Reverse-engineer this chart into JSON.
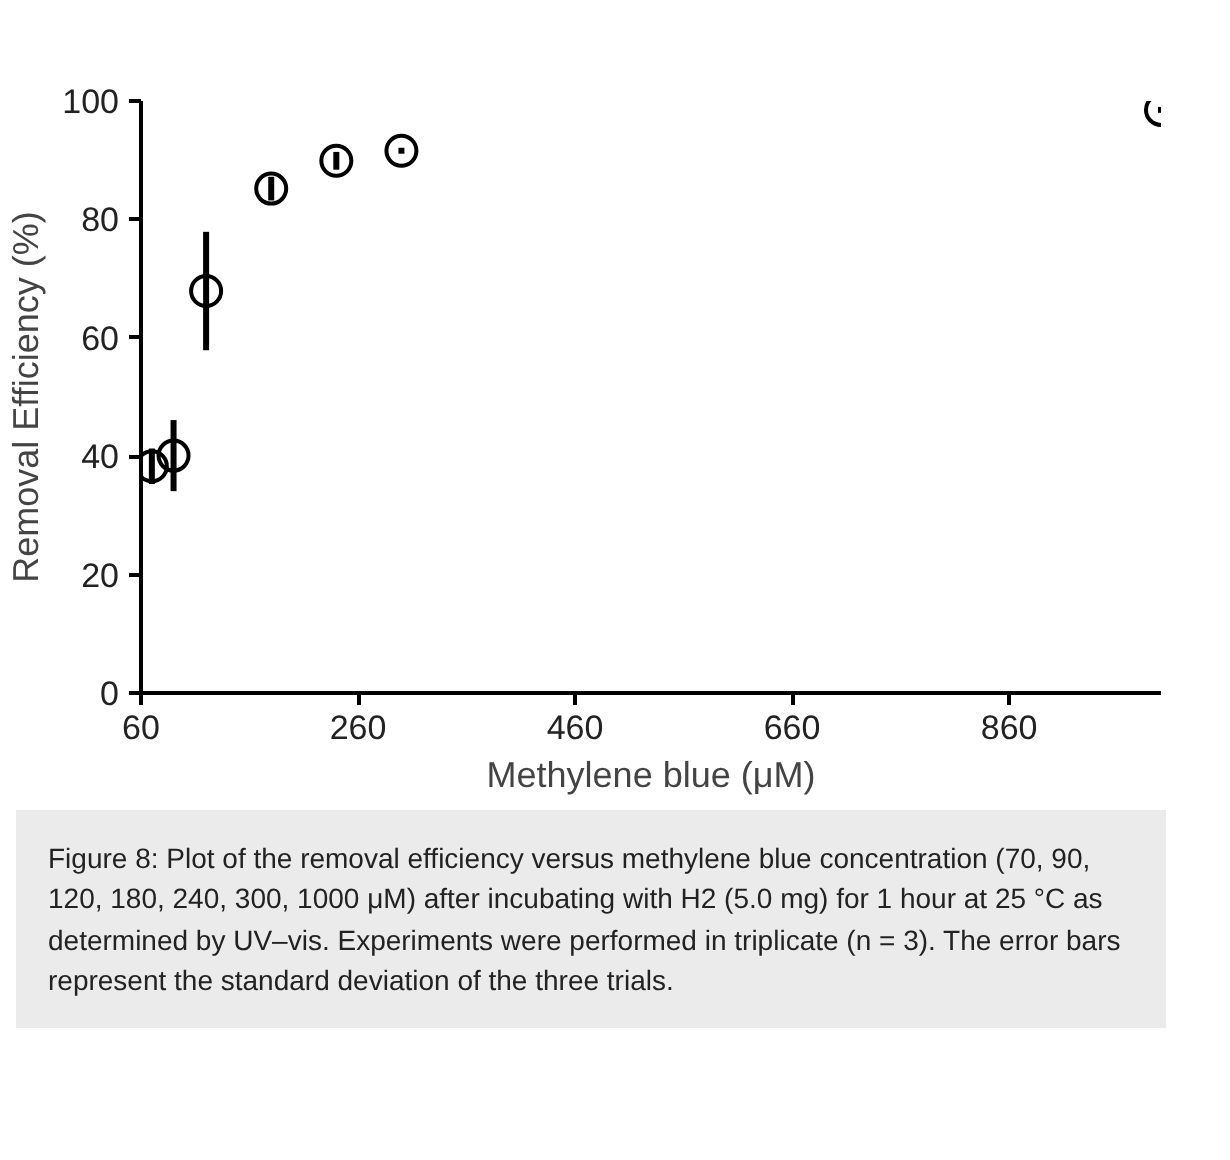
{
  "chart_data": {
    "type": "scatter",
    "xlabel": "Methylene blue (μM)",
    "ylabel": "Removal Efficiency (%)",
    "x": [
      70,
      90,
      120,
      180,
      240,
      300,
      1000
    ],
    "values": [
      38.3,
      40.1,
      67.9,
      85.2,
      89.9,
      91.6,
      98.5
    ],
    "errors": [
      3,
      6,
      10,
      2,
      1.5,
      0.5,
      0.5
    ],
    "color": "#000000",
    "marker": "circle",
    "grid": false,
    "xlim": [
      60,
      1000
    ],
    "xticks": [
      60,
      260,
      460,
      660,
      860
    ],
    "ylim": [
      0,
      100
    ],
    "yticks": [
      0,
      20,
      40,
      60,
      80,
      100
    ],
    "annotations": [
      "Figure 8: Plot of the removal efficiency versus methylene blue concentration (70, 90, 120, 180, 240, 300, 1000 μM) after incubating with H2 (5.0 mg) for 1 hour at 25 °C as determined by UV–vis. Experiments were performed in triplicate (n = 3). The error bars represent the standard deviation of the three trials."
    ]
  }
}
